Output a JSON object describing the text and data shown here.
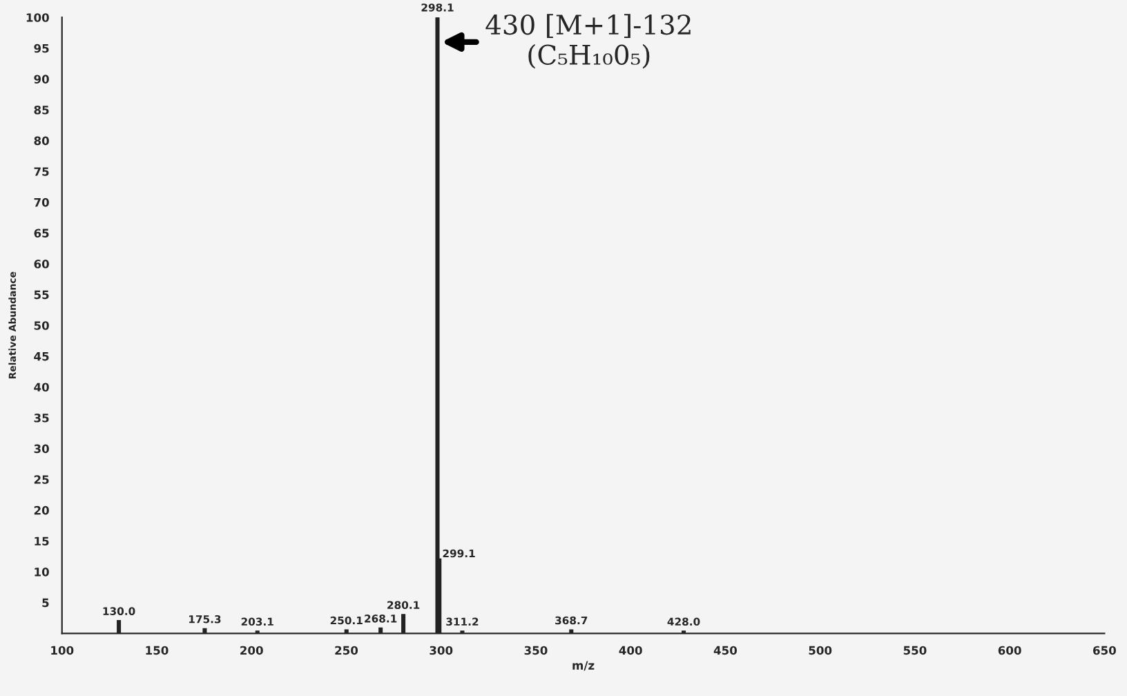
{
  "chart_data": {
    "type": "bar",
    "xlabel": "m/z",
    "ylabel": "Relative Abundance",
    "x": [
      130.0,
      175.3,
      203.1,
      250.1,
      268.1,
      280.1,
      298.1,
      299.1,
      311.2,
      368.7,
      428.0
    ],
    "values": [
      2,
      0.7,
      0.3,
      0.5,
      0.8,
      3,
      100,
      12,
      0.3,
      0.5,
      0.3
    ],
    "color": "#222222",
    "xlim": [
      100,
      650
    ],
    "xticks": [
      100,
      150,
      200,
      250,
      300,
      350,
      400,
      450,
      500,
      550,
      600,
      650
    ],
    "ylim": [
      0,
      100
    ],
    "yticks": [
      {
        "value": 0,
        "label": null
      },
      5,
      10,
      15,
      20,
      25,
      30,
      35,
      40,
      45,
      50,
      55,
      60,
      65,
      70,
      75,
      80,
      85,
      90,
      95,
      100
    ],
    "grid": false,
    "annotations": [
      {
        "text": "130.0",
        "x": 130.0,
        "y": 2
      },
      {
        "text": "175.3",
        "x": 175.3,
        "y": 0.7
      },
      {
        "text": "203.1",
        "x": 203.1,
        "y": 0.3
      },
      {
        "text": "250.1",
        "x": 250.1,
        "y": 0.5
      },
      {
        "text": "268.1",
        "x": 268.1,
        "y": 0.8
      },
      {
        "text": "280.1",
        "x": 280.1,
        "y": 3
      },
      {
        "text": "298.1",
        "x": 298.1,
        "y": 100
      },
      {
        "text": "299.1",
        "x": 299.1,
        "y": 12
      },
      {
        "text": "311.2",
        "x": 311.2,
        "y": 0.3
      },
      {
        "text": "368.7",
        "x": 368.7,
        "y": 0.5
      },
      {
        "text": "428.0",
        "x": 428.0,
        "y": 0.3
      },
      {
        "text": "430 [M+1]-132\n(C₅H₁₀0₅)",
        "x": 298.1,
        "y": 96
      }
    ]
  }
}
